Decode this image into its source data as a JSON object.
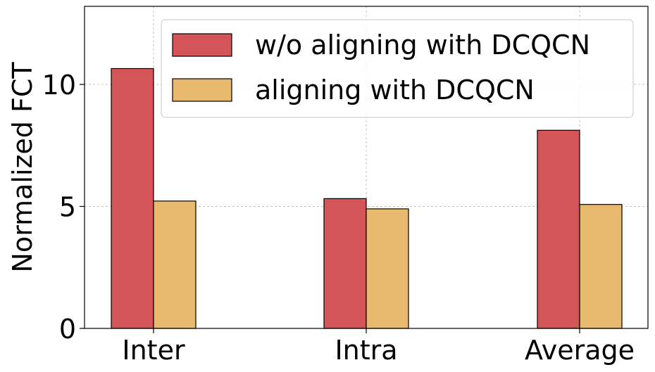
{
  "chart_data": {
    "type": "bar",
    "categories": [
      "Inter",
      "Intra",
      "Average"
    ],
    "series": [
      {
        "name": "w/o aligning with DCQCN",
        "color": "#d35557",
        "values": [
          10.65,
          5.32,
          8.12
        ]
      },
      {
        "name": "aligning with DCQCN",
        "color": "#e9b96e",
        "values": [
          5.22,
          4.9,
          5.08
        ]
      }
    ],
    "xlabel": "",
    "ylabel": "Normalized FCT",
    "ylim": [
      0,
      13.2
    ],
    "yticks": [
      0,
      5,
      10
    ],
    "grid": true,
    "legend_position": "top-right"
  }
}
